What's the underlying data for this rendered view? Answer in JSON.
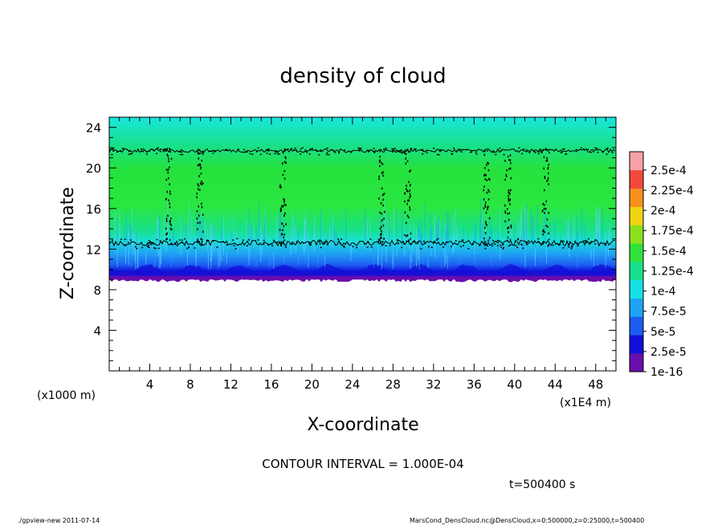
{
  "chart_data": {
    "type": "heatmap",
    "title": "density of cloud",
    "xlabel": "X-coordinate",
    "ylabel": "Z-coordinate",
    "x_unit": "(x1E4 m)",
    "y_unit": "(x1000 m)",
    "xlim": [
      0,
      50
    ],
    "ylim": [
      0,
      25
    ],
    "x_ticks": [
      4,
      8,
      12,
      16,
      20,
      24,
      28,
      32,
      36,
      40,
      44,
      48
    ],
    "y_ticks": [
      4,
      8,
      12,
      16,
      20,
      24
    ],
    "grid": false,
    "legend_position": "right",
    "colorbar": {
      "labels": [
        "1e-16",
        "2.5e-5",
        "5e-5",
        "7.5e-5",
        "1e-4",
        "1.25e-4",
        "1.5e-4",
        "1.75e-4",
        "2e-4",
        "2.25e-4",
        "2.5e-4"
      ],
      "colors": [
        "#6a0dad",
        "#1010d8",
        "#1d5cf0",
        "#1ea3f5",
        "#19e0e6",
        "#17e08c",
        "#2fe33a",
        "#8ce01c",
        "#f2d414",
        "#f7901e",
        "#f24a3a",
        "#f7a0a8"
      ]
    },
    "field": {
      "cloud_base_z": 9,
      "cloud_top_z": 25,
      "layer_values": [
        {
          "z": [
            8.9,
            9.3
          ],
          "value": 1e-16
        },
        {
          "z": [
            9.3,
            9.8
          ],
          "value": 2.5e-05
        },
        {
          "z": [
            9.8,
            10.6
          ],
          "value": 5e-05
        },
        {
          "z": [
            10.6,
            12.0
          ],
          "value": 7.5e-05
        },
        {
          "z": [
            12.0,
            13.0
          ],
          "value": 0.0001
        },
        {
          "z": [
            13.0,
            21.0
          ],
          "value": 0.000125
        },
        {
          "z": [
            21.0,
            22.3
          ],
          "value": 0.0001
        },
        {
          "z": [
            22.3,
            25.0
          ],
          "value": 7.5e-05
        }
      ],
      "contour_levels_z": [
        12.6,
        21.7
      ]
    },
    "contour_interval": "CONTOUR INTERVAL = 1.000E-04",
    "time_label": "t=500400 s"
  },
  "footer": {
    "left": "./gpview-new  2011-07-14",
    "right": "MarsCond_DensCloud.nc@DensCloud,x=0:500000,z=0:25000,t=500400"
  }
}
